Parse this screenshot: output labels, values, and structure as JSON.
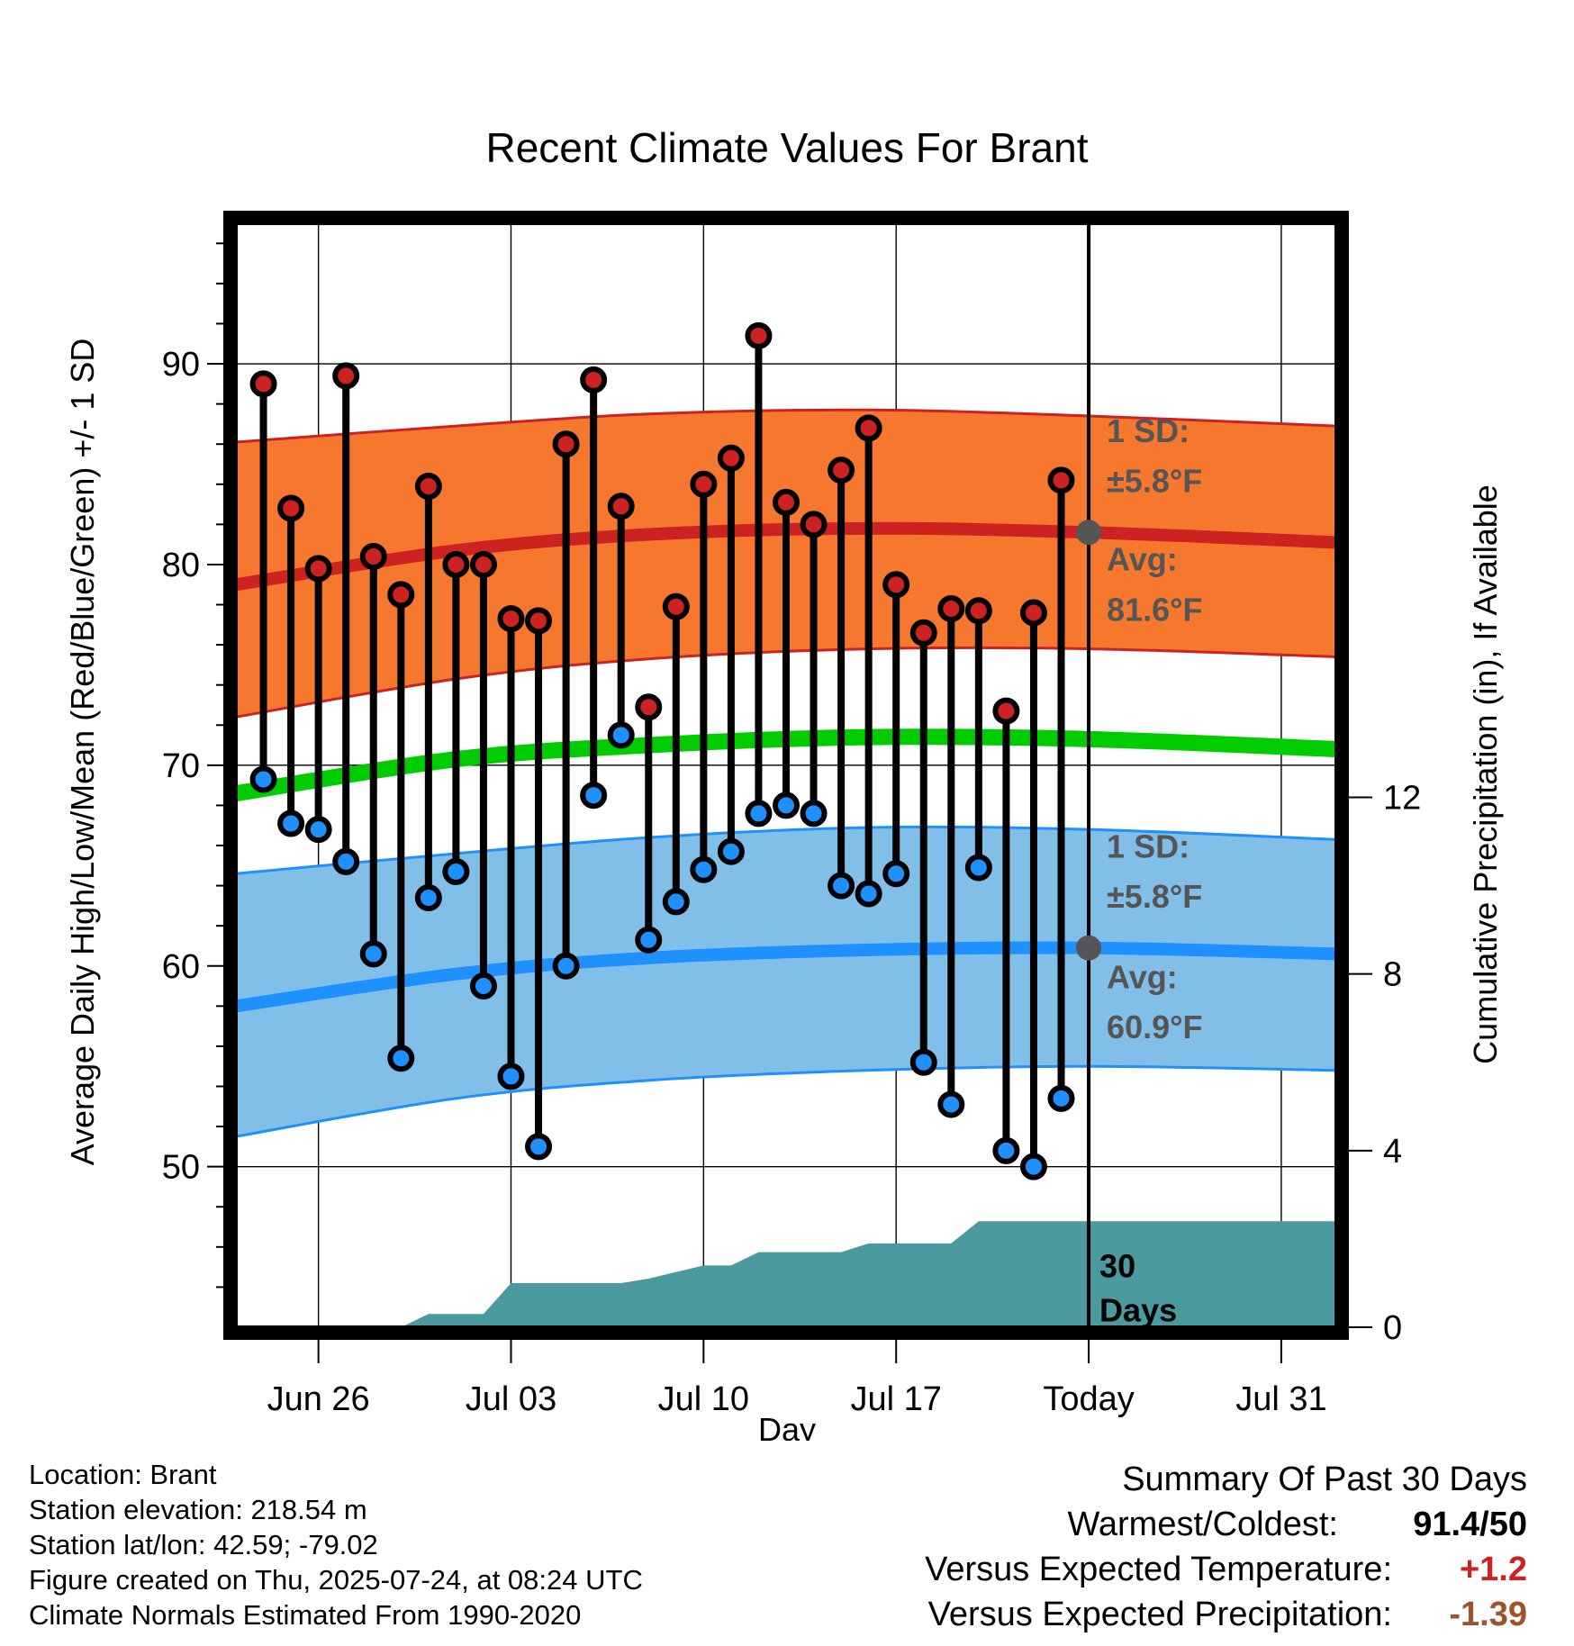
{
  "chart_data": {
    "type": "line",
    "title": "Recent Climate Values For Brant",
    "xlabel": "Day",
    "ylabel": "Average Daily High/Low/Mean (Red/Blue/Green) +/- 1 SD",
    "y2label": "Cumulative Precipitation (in), If Available",
    "ylim": [
      42,
      97
    ],
    "y2lim": [
      0,
      25
    ],
    "x_tick_labels": [
      "Jun 26",
      "Jul 03",
      "Jul 10",
      "Jul 17",
      "Today",
      "Jul 31"
    ],
    "x_tick_dates": [
      "2025-06-26",
      "2025-07-03",
      "2025-07-10",
      "2025-07-17",
      "2025-07-24",
      "2025-07-31"
    ],
    "xlim": [
      "2025-06-23",
      "2025-08-02"
    ],
    "y_ticks": [
      50,
      60,
      70,
      80,
      90
    ],
    "y2_ticks": [
      0,
      4,
      8,
      12
    ],
    "today": "2025-07-24",
    "dates": [
      "2025-06-24",
      "2025-06-25",
      "2025-06-26",
      "2025-06-27",
      "2025-06-28",
      "2025-06-29",
      "2025-06-30",
      "2025-07-01",
      "2025-07-02",
      "2025-07-03",
      "2025-07-04",
      "2025-07-05",
      "2025-07-06",
      "2025-07-07",
      "2025-07-08",
      "2025-07-09",
      "2025-07-10",
      "2025-07-11",
      "2025-07-12",
      "2025-07-13",
      "2025-07-14",
      "2025-07-15",
      "2025-07-16",
      "2025-07-17",
      "2025-07-18",
      "2025-07-19",
      "2025-07-20",
      "2025-07-21",
      "2025-07-22",
      "2025-07-23"
    ],
    "series": [
      {
        "name": "High",
        "color": "#cc2222",
        "values": [
          89.0,
          82.8,
          79.8,
          89.4,
          80.4,
          78.5,
          83.9,
          80.0,
          80.0,
          77.3,
          77.2,
          86.0,
          89.2,
          82.9,
          72.9,
          77.9,
          84.0,
          85.3,
          91.4,
          83.1,
          82.0,
          84.7,
          86.8,
          79.0,
          76.6,
          77.8,
          77.7,
          72.7,
          77.6,
          84.2
        ]
      },
      {
        "name": "Low",
        "color": "#1e90ff",
        "values": [
          69.3,
          67.1,
          66.8,
          65.2,
          60.6,
          55.4,
          63.4,
          64.7,
          59.0,
          54.5,
          51.0,
          60.0,
          68.5,
          71.5,
          61.3,
          63.2,
          64.8,
          65.7,
          67.6,
          68.0,
          67.6,
          64.0,
          63.6,
          64.6,
          55.2,
          53.1,
          64.9,
          50.8,
          50.0,
          53.4
        ]
      }
    ],
    "normals": {
      "dates": [
        "2025-06-23",
        "2025-07-01",
        "2025-07-08",
        "2025-07-16",
        "2025-07-24",
        "2025-08-02"
      ],
      "high_avg": [
        79.0,
        80.7,
        81.5,
        81.8,
        81.6,
        81.1
      ],
      "high_sd_upper": [
        86.1,
        86.9,
        87.5,
        87.7,
        87.4,
        86.9
      ],
      "high_sd_lower": [
        72.4,
        74.3,
        75.3,
        75.8,
        75.8,
        75.4
      ],
      "mean": [
        68.6,
        70.3,
        71.0,
        71.4,
        71.3,
        70.8
      ],
      "low_avg": [
        58.0,
        59.6,
        60.4,
        60.8,
        60.9,
        60.6
      ],
      "low_sd_upper": [
        64.6,
        65.6,
        66.4,
        66.9,
        66.8,
        66.3
      ],
      "low_sd_lower": [
        51.5,
        53.4,
        54.3,
        54.8,
        55.0,
        54.8
      ]
    },
    "precipitation": {
      "dates": [
        "2025-06-23",
        "2025-06-29",
        "2025-06-30",
        "2025-07-01",
        "2025-07-02",
        "2025-07-03",
        "2025-07-06",
        "2025-07-07",
        "2025-07-08",
        "2025-07-10",
        "2025-07-11",
        "2025-07-12",
        "2025-07-15",
        "2025-07-16",
        "2025-07-19",
        "2025-07-20",
        "2025-07-24",
        "2025-08-02"
      ],
      "values": [
        0,
        0,
        0.3,
        0.3,
        0.3,
        1.0,
        1.0,
        1.0,
        1.1,
        1.4,
        1.4,
        1.7,
        1.7,
        1.9,
        1.9,
        2.4,
        2.4,
        2.4
      ]
    },
    "annotations": {
      "high_sd_label": "1 SD:",
      "high_sd_value": "±5.8°F",
      "high_avg_label": "Avg:",
      "high_avg_value": "81.6°F",
      "low_sd_label": "1 SD:",
      "low_sd_value": "±5.8°F",
      "low_avg_label": "Avg:",
      "low_avg_value": "60.9°F",
      "precip_label_line1": "30",
      "precip_label_line2": "Days"
    },
    "colors": {
      "high_band": "#f5782e",
      "high_line": "#cc2222",
      "low_band": "#82bfe8",
      "low_line": "#1e90ff",
      "mean_line": "#00cc00",
      "precip": "#4a9aa0",
      "annotation": "#555555"
    },
    "grid": true
  },
  "info": {
    "location": "Location: Brant",
    "elevation": "Station elevation: 218.54 m",
    "latlon": "Station lat/lon: 42.59; -79.02",
    "created": "Figure created on Thu, 2025-07-24, at 08:24 UTC",
    "normals": "Climate Normals Estimated From 1990-2020"
  },
  "summary": {
    "heading": "Summary Of Past 30 Days",
    "warm_cold_label": "Warmest/Coldest:",
    "warm_cold_value": "91.4/50",
    "temp_label": "Versus Expected Temperature:",
    "temp_value": "+1.2",
    "temp_color": "#cc2222",
    "precip_label": "Versus Expected Precipitation:",
    "precip_value": "-1.39",
    "precip_color": "#a0522d"
  }
}
